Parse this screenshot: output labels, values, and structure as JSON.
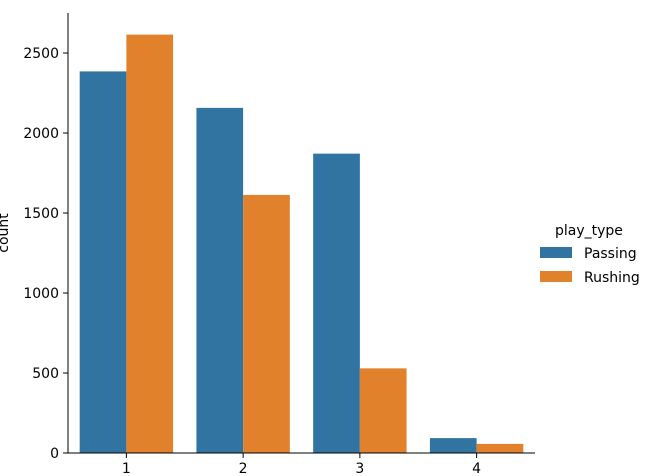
{
  "chart_data": {
    "type": "bar",
    "categories": [
      "1",
      "2",
      "3",
      "4"
    ],
    "series": [
      {
        "name": "Passing",
        "values": [
          2385,
          2157,
          1871,
          93
        ],
        "color": "#3274a1"
      },
      {
        "name": "Rushing",
        "values": [
          2615,
          1613,
          529,
          57
        ],
        "color": "#e1812c"
      }
    ],
    "xlabel": "",
    "ylabel": "count",
    "ylim": [
      0,
      2750
    ],
    "yticks": [
      0,
      500,
      1000,
      1500,
      2000,
      2500
    ],
    "legend": {
      "title": "play_type",
      "placement": "right"
    },
    "grid": false
  }
}
